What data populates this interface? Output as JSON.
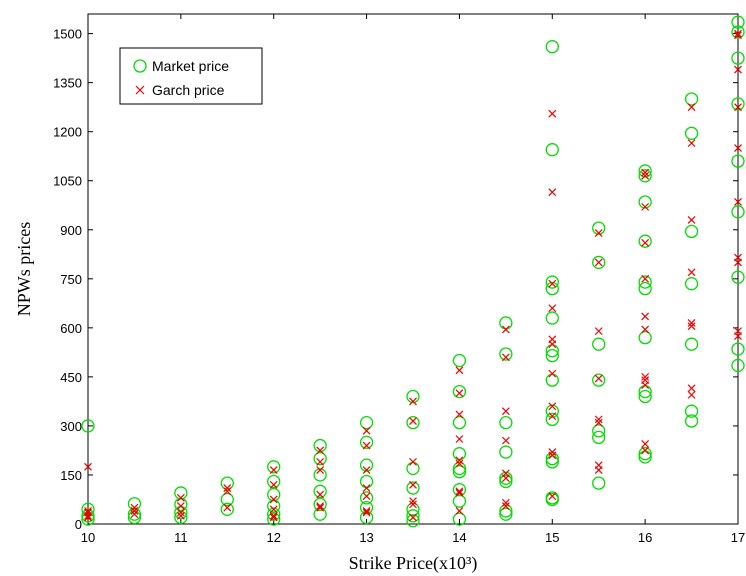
{
  "chart_data": {
    "type": "scatter",
    "xlabel": "Strike Price(x10³)",
    "ylabel": "NPWs prices",
    "xlim": [
      10,
      17
    ],
    "ylim": [
      0,
      1560
    ],
    "xticks": [
      10,
      11,
      12,
      13,
      14,
      15,
      16,
      17
    ],
    "yticks": [
      0,
      150,
      300,
      450,
      600,
      750,
      900,
      1050,
      1200,
      1350,
      1500
    ],
    "grid": false,
    "legend_position": "top-left",
    "series": [
      {
        "name": "Market price",
        "marker": "circle",
        "color": "#00dd00",
        "points": [
          [
            10,
            300
          ],
          [
            10,
            45
          ],
          [
            10,
            25
          ],
          [
            10,
            15
          ],
          [
            10.5,
            62
          ],
          [
            10.5,
            30
          ],
          [
            10.5,
            20
          ],
          [
            11,
            95
          ],
          [
            11,
            60
          ],
          [
            11,
            35
          ],
          [
            11,
            20
          ],
          [
            11.5,
            125
          ],
          [
            11.5,
            75
          ],
          [
            11.5,
            45
          ],
          [
            12,
            175
          ],
          [
            12,
            130
          ],
          [
            12,
            90
          ],
          [
            12,
            55
          ],
          [
            12,
            30
          ],
          [
            12,
            15
          ],
          [
            12.5,
            240
          ],
          [
            12.5,
            200
          ],
          [
            12.5,
            150
          ],
          [
            12.5,
            100
          ],
          [
            12.5,
            60
          ],
          [
            12.5,
            30
          ],
          [
            13,
            310
          ],
          [
            13,
            250
          ],
          [
            13,
            180
          ],
          [
            13,
            130
          ],
          [
            13,
            80
          ],
          [
            13,
            50
          ],
          [
            13,
            20
          ],
          [
            13.5,
            390
          ],
          [
            13.5,
            310
          ],
          [
            13.5,
            170
          ],
          [
            13.5,
            110
          ],
          [
            13.5,
            45
          ],
          [
            13.5,
            25
          ],
          [
            13.5,
            10
          ],
          [
            14,
            500
          ],
          [
            14,
            405
          ],
          [
            14,
            310
          ],
          [
            14,
            215
          ],
          [
            14,
            170
          ],
          [
            14,
            160
          ],
          [
            14,
            105
          ],
          [
            14,
            70
          ],
          [
            14,
            15
          ],
          [
            14.5,
            615
          ],
          [
            14.5,
            520
          ],
          [
            14.5,
            310
          ],
          [
            14.5,
            220
          ],
          [
            14.5,
            140
          ],
          [
            14.5,
            130
          ],
          [
            14.5,
            40
          ],
          [
            14.5,
            30
          ],
          [
            15,
            1460
          ],
          [
            15,
            1145
          ],
          [
            15,
            740
          ],
          [
            15,
            720
          ],
          [
            15,
            630
          ],
          [
            15,
            530
          ],
          [
            15,
            515
          ],
          [
            15,
            440
          ],
          [
            15,
            345
          ],
          [
            15,
            320
          ],
          [
            15,
            200
          ],
          [
            15,
            190
          ],
          [
            15,
            80
          ],
          [
            15,
            75
          ],
          [
            15.5,
            905
          ],
          [
            15.5,
            800
          ],
          [
            15.5,
            550
          ],
          [
            15.5,
            440
          ],
          [
            15.5,
            285
          ],
          [
            15.5,
            265
          ],
          [
            15.5,
            125
          ],
          [
            16,
            1080
          ],
          [
            16,
            1065
          ],
          [
            16,
            985
          ],
          [
            16,
            865
          ],
          [
            16,
            740
          ],
          [
            16,
            720
          ],
          [
            16,
            570
          ],
          [
            16,
            405
          ],
          [
            16,
            390
          ],
          [
            16,
            215
          ],
          [
            16,
            205
          ],
          [
            16.5,
            1300
          ],
          [
            16.5,
            1195
          ],
          [
            16.5,
            895
          ],
          [
            16.5,
            735
          ],
          [
            16.5,
            550
          ],
          [
            16.5,
            345
          ],
          [
            16.5,
            315
          ],
          [
            17,
            1535
          ],
          [
            17,
            1505
          ],
          [
            17,
            1425
          ],
          [
            17,
            1285
          ],
          [
            17,
            1110
          ],
          [
            17,
            955
          ],
          [
            17,
            755
          ],
          [
            17,
            535
          ],
          [
            17,
            485
          ]
        ]
      },
      {
        "name": "Garch price",
        "marker": "x",
        "color": "#ee0000",
        "points": [
          [
            10,
            175
          ],
          [
            10,
            40
          ],
          [
            10,
            35
          ],
          [
            10,
            25
          ],
          [
            10,
            20
          ],
          [
            10.5,
            50
          ],
          [
            10.5,
            40
          ],
          [
            10.5,
            30
          ],
          [
            11,
            80
          ],
          [
            11,
            55
          ],
          [
            11,
            35
          ],
          [
            11,
            25
          ],
          [
            11.5,
            110
          ],
          [
            11.5,
            100
          ],
          [
            11.5,
            50
          ],
          [
            12,
            165
          ],
          [
            12,
            120
          ],
          [
            12,
            75
          ],
          [
            12,
            45
          ],
          [
            12,
            25
          ],
          [
            12,
            20
          ],
          [
            12.5,
            225
          ],
          [
            12.5,
            190
          ],
          [
            12.5,
            165
          ],
          [
            12.5,
            90
          ],
          [
            12.5,
            55
          ],
          [
            12.5,
            50
          ],
          [
            13,
            285
          ],
          [
            13,
            240
          ],
          [
            13,
            165
          ],
          [
            13,
            110
          ],
          [
            13,
            85
          ],
          [
            13,
            40
          ],
          [
            13,
            35
          ],
          [
            13.5,
            375
          ],
          [
            13.5,
            315
          ],
          [
            13.5,
            190
          ],
          [
            13.5,
            120
          ],
          [
            13.5,
            70
          ],
          [
            13.5,
            60
          ],
          [
            13.5,
            20
          ],
          [
            14,
            470
          ],
          [
            14,
            400
          ],
          [
            14,
            335
          ],
          [
            14,
            260
          ],
          [
            14,
            195
          ],
          [
            14,
            185
          ],
          [
            14,
            100
          ],
          [
            14,
            95
          ],
          [
            14,
            40
          ],
          [
            14.5,
            595
          ],
          [
            14.5,
            510
          ],
          [
            14.5,
            345
          ],
          [
            14.5,
            255
          ],
          [
            14.5,
            155
          ],
          [
            14.5,
            140
          ],
          [
            14.5,
            65
          ],
          [
            14.5,
            55
          ],
          [
            15,
            1255
          ],
          [
            15,
            1015
          ],
          [
            15,
            735
          ],
          [
            15,
            660
          ],
          [
            15,
            565
          ],
          [
            15,
            550
          ],
          [
            15,
            460
          ],
          [
            15,
            360
          ],
          [
            15,
            330
          ],
          [
            15,
            220
          ],
          [
            15,
            210
          ],
          [
            15,
            85
          ],
          [
            15.5,
            890
          ],
          [
            15.5,
            800
          ],
          [
            15.5,
            590
          ],
          [
            15.5,
            445
          ],
          [
            15.5,
            320
          ],
          [
            15.5,
            310
          ],
          [
            15.5,
            180
          ],
          [
            15.5,
            165
          ],
          [
            16,
            1075
          ],
          [
            16,
            1065
          ],
          [
            16,
            970
          ],
          [
            16,
            860
          ],
          [
            16,
            750
          ],
          [
            16,
            635
          ],
          [
            16,
            595
          ],
          [
            16,
            450
          ],
          [
            16,
            440
          ],
          [
            16,
            425
          ],
          [
            16,
            245
          ],
          [
            16,
            225
          ],
          [
            16.5,
            1275
          ],
          [
            16.5,
            1165
          ],
          [
            16.5,
            930
          ],
          [
            16.5,
            770
          ],
          [
            16.5,
            615
          ],
          [
            16.5,
            605
          ],
          [
            16.5,
            415
          ],
          [
            16.5,
            395
          ],
          [
            17,
            1500
          ],
          [
            17,
            1495
          ],
          [
            17,
            1390
          ],
          [
            17,
            1275
          ],
          [
            17,
            1150
          ],
          [
            17,
            985
          ],
          [
            17,
            815
          ],
          [
            17,
            800
          ],
          [
            17,
            590
          ],
          [
            17,
            575
          ]
        ]
      }
    ]
  }
}
